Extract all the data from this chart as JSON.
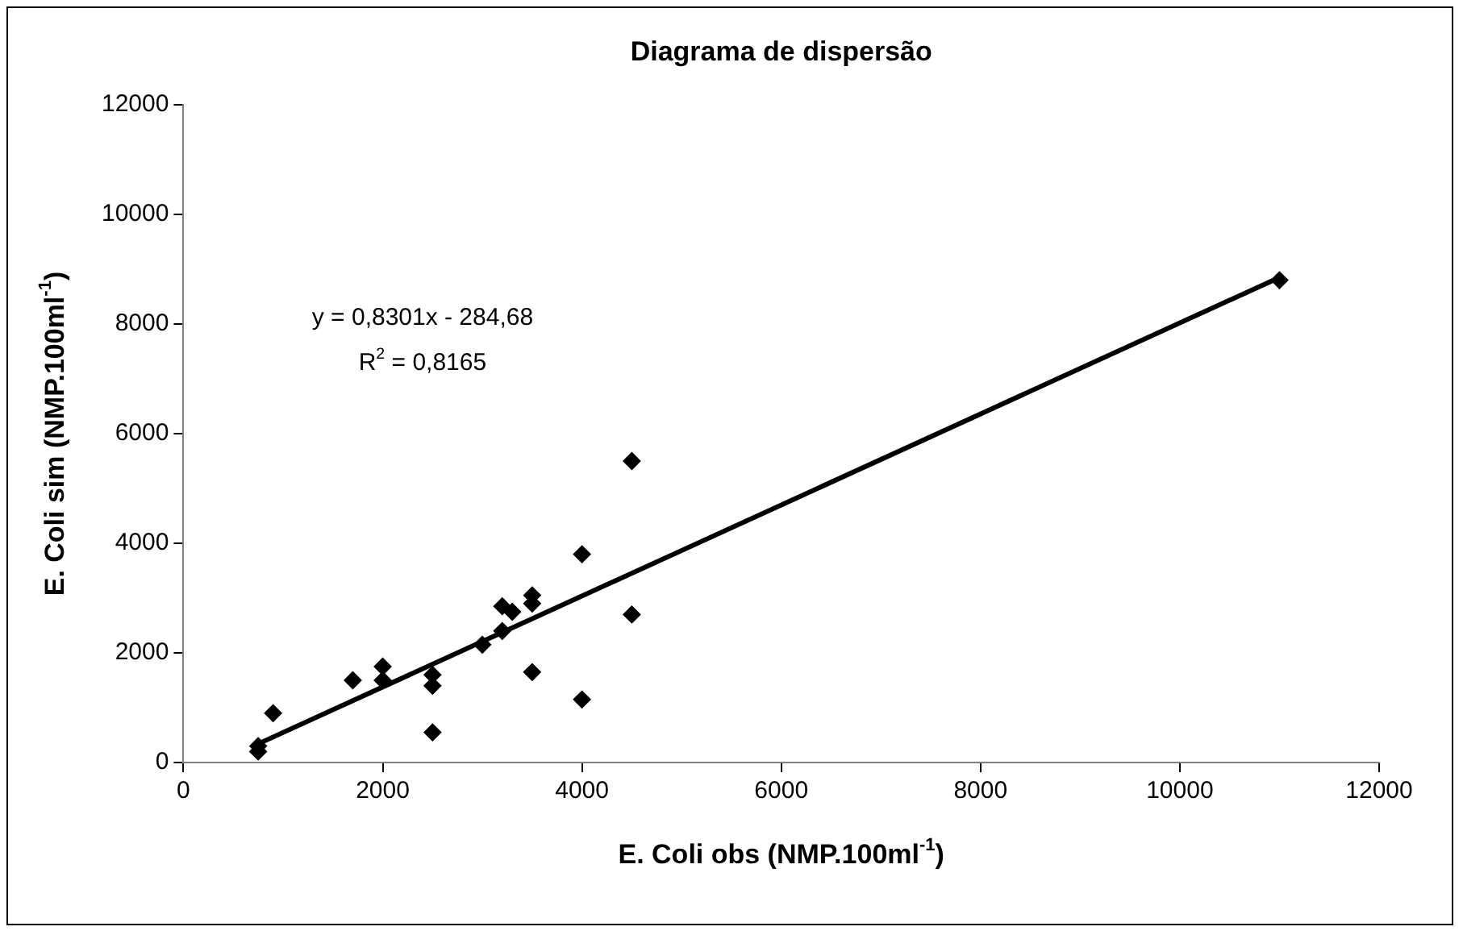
{
  "chart_data": {
    "type": "scatter",
    "title": "Diagrama de dispersão",
    "xlabel": "E. Coli obs (NMP.100ml$^{-1}$)",
    "ylabel": "E. Coli sim (NMP.100ml$^{-1}$)",
    "x": [
      750,
      750,
      900,
      1700,
      2000,
      2000,
      2500,
      2500,
      2500,
      3000,
      3200,
      3200,
      3300,
      3500,
      3500,
      3500,
      4000,
      4000,
      4500,
      4500,
      11000
    ],
    "series": [
      {
        "type": "scatter",
        "color": "#000000",
        "marker": "diamond",
        "values": [
          200,
          300,
          900,
          1500,
          1750,
          1500,
          1600,
          1400,
          550,
          2150,
          2400,
          2850,
          2750,
          3050,
          2900,
          1650,
          3800,
          1150,
          5500,
          2700,
          8800
        ]
      },
      {
        "type": "line",
        "color": "#000000",
        "x": [
          750,
          11000
        ],
        "values": [
          340,
          8850
        ],
        "marker": "none"
      }
    ],
    "xlim": [
      0,
      12000
    ],
    "xticks": [
      0,
      2000,
      4000,
      6000,
      8000,
      10000,
      12000
    ],
    "ylim": [
      0,
      12000
    ],
    "yticks": [
      0,
      2000,
      4000,
      6000,
      8000,
      10000,
      12000
    ],
    "annotations": [
      "y = 0,8301x - 284,68",
      "R$^{2}$ = 0,8165"
    ],
    "grid": false,
    "legend": false
  }
}
